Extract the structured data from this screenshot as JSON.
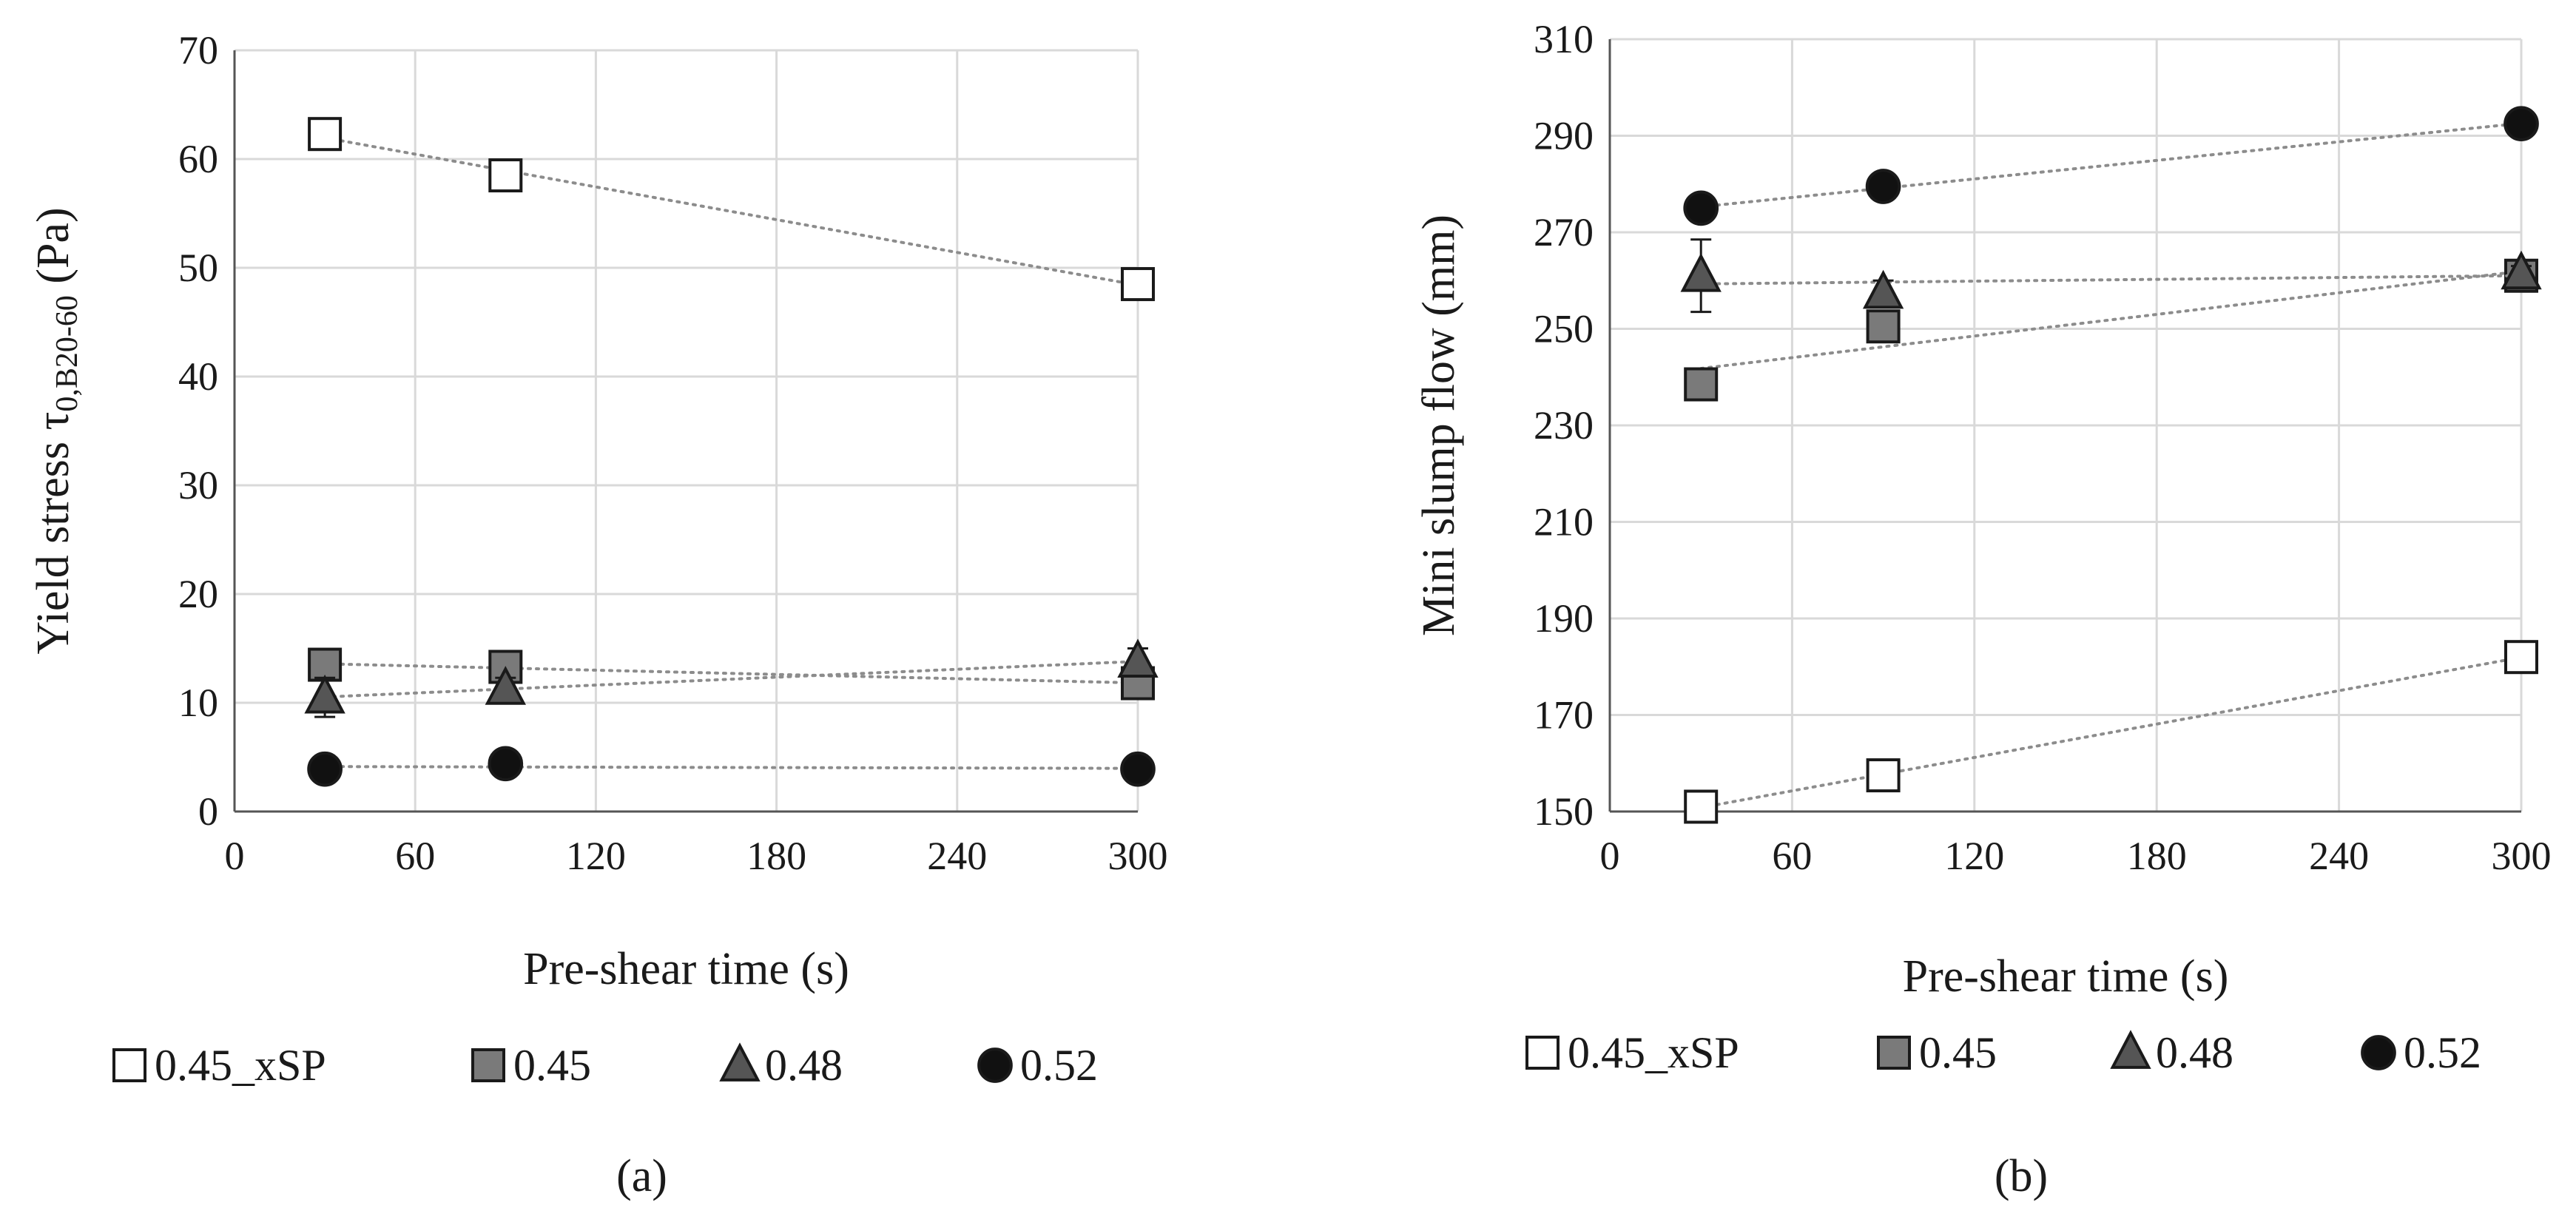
{
  "chart_data": [
    {
      "type": "scatter",
      "panel_label": "(a)",
      "xlabel": "Pre-shear time (s)",
      "ylabel_main": "Yield stress τ",
      "ylabel_subscript": "0,B20-60",
      "ylabel_unit": " (Pa)",
      "xlim": [
        0,
        300
      ],
      "ylim": [
        0,
        70
      ],
      "xticks": [
        0,
        60,
        120,
        180,
        240,
        300
      ],
      "yticks": [
        0,
        10,
        20,
        30,
        40,
        50,
        60,
        70
      ],
      "grid": true,
      "legend": "bottom",
      "x": [
        30,
        90,
        300
      ],
      "series": [
        {
          "name": "0.45_xSP",
          "marker": "square",
          "fill": "#ffffff",
          "values": [
            62.3,
            58.5,
            48.5
          ],
          "error": [
            0.8,
            0.6,
            0.6
          ]
        },
        {
          "name": "0.45",
          "marker": "square",
          "fill": "#7a7a7a",
          "values": [
            13.5,
            13.3,
            11.8
          ],
          "error": [
            0.8,
            0.8,
            0.8
          ]
        },
        {
          "name": "0.48",
          "marker": "triangle",
          "fill": "#555555",
          "values": [
            10.5,
            11.3,
            13.8
          ],
          "error": [
            1.8,
            1.0,
            1.2
          ]
        },
        {
          "name": "0.52",
          "marker": "circle",
          "fill": "#111111",
          "values": [
            3.9,
            4.4,
            3.9
          ],
          "error": [
            0.4,
            0.4,
            0.4
          ]
        }
      ]
    },
    {
      "type": "scatter",
      "panel_label": "(b)",
      "xlabel": "Pre-shear time (s)",
      "ylabel_main": "Mini slump flow (mm)",
      "xlim": [
        0,
        300
      ],
      "ylim": [
        150,
        310
      ],
      "xticks": [
        0,
        60,
        120,
        180,
        240,
        300
      ],
      "yticks": [
        150,
        170,
        190,
        210,
        230,
        250,
        270,
        290,
        310
      ],
      "grid": true,
      "legend": "bottom",
      "x": [
        30,
        90,
        300
      ],
      "series": [
        {
          "name": "0.45_xSP",
          "marker": "square",
          "fill": "#ffffff",
          "values": [
            151,
            157.5,
            182
          ],
          "error": [
            1,
            1,
            1
          ]
        },
        {
          "name": "0.45",
          "marker": "square",
          "fill": "#7a7a7a",
          "values": [
            238.5,
            250.5,
            261
          ],
          "error": [
            1.5,
            1.5,
            1
          ]
        },
        {
          "name": "0.48",
          "marker": "triangle",
          "fill": "#555555",
          "values": [
            261,
            257.5,
            261.5
          ],
          "error": [
            7.5,
            2.5,
            1.5
          ]
        },
        {
          "name": "0.52",
          "marker": "circle",
          "fill": "#111111",
          "values": [
            275,
            279.5,
            292.5
          ],
          "error": [
            2.5,
            1,
            1
          ]
        }
      ]
    }
  ]
}
